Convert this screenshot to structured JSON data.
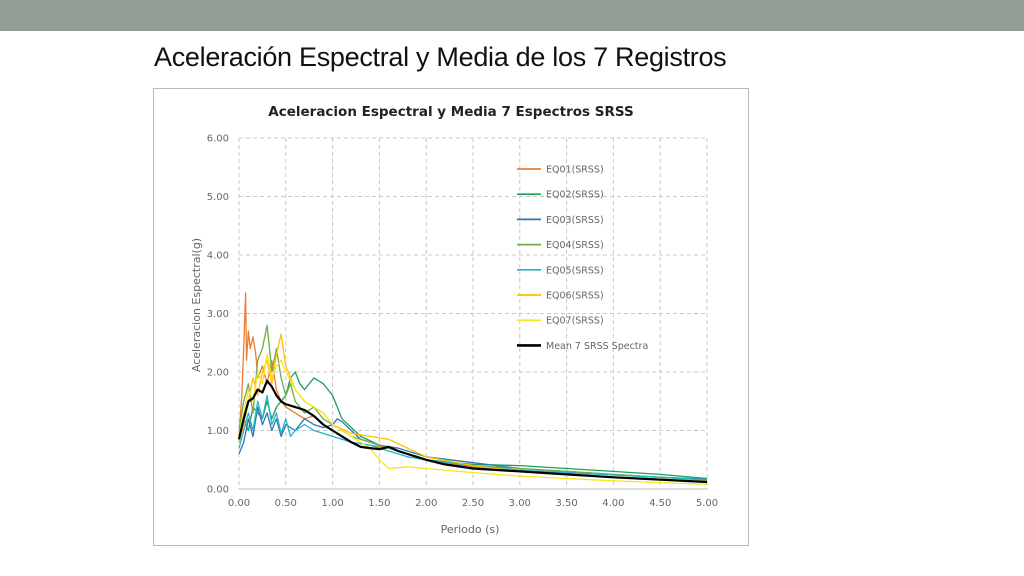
{
  "slide": {
    "title": "Aceleración Espectral y Media de los 7 Registros"
  },
  "colors": {
    "topbar": "#909e95"
  },
  "chart_data": {
    "type": "line",
    "title": "Aceleracion Espectral y Media 7 Espectros SRSS",
    "xlabel": "Periodo (s)",
    "ylabel": "Aceleracion Espectral(g)",
    "xlim": [
      0,
      5
    ],
    "ylim": [
      0,
      6
    ],
    "xticks": [
      "0.00",
      "0.50",
      "1.00",
      "1.50",
      "2.00",
      "2.50",
      "3.00",
      "3.50",
      "4.00",
      "4.50",
      "5.00"
    ],
    "yticks": [
      "0.00",
      "1.00",
      "2.00",
      "3.00",
      "4.00",
      "5.00",
      "6.00"
    ],
    "grid": "dashed",
    "legend_position": "right",
    "series": [
      {
        "name": "EQ01(SRSS)",
        "color": "#ed7d31",
        "width": 1.3,
        "x": [
          0,
          0.03,
          0.05,
          0.07,
          0.08,
          0.1,
          0.12,
          0.15,
          0.18,
          0.2,
          0.25,
          0.3,
          0.35,
          0.4,
          0.45,
          0.5,
          0.6,
          0.7,
          0.8,
          0.9,
          1.0,
          1.2,
          1.4,
          1.6,
          1.8,
          2.0,
          2.5,
          3.0,
          3.5,
          4.0,
          4.5,
          5.0
        ],
        "y": [
          0.9,
          1.6,
          2.4,
          3.35,
          2.2,
          2.7,
          2.4,
          2.6,
          2.3,
          1.9,
          2.1,
          1.8,
          2.2,
          1.7,
          1.5,
          1.4,
          1.3,
          1.2,
          1.25,
          1.1,
          1.0,
          0.8,
          0.75,
          0.7,
          0.6,
          0.5,
          0.38,
          0.32,
          0.28,
          0.24,
          0.2,
          0.16
        ]
      },
      {
        "name": "EQ02(SRSS)",
        "color": "#1e9e5a",
        "width": 1.3,
        "x": [
          0,
          0.05,
          0.1,
          0.15,
          0.2,
          0.25,
          0.3,
          0.35,
          0.4,
          0.5,
          0.55,
          0.6,
          0.65,
          0.7,
          0.8,
          0.9,
          1.0,
          1.1,
          1.3,
          1.5,
          1.7,
          2.0,
          2.5,
          3.0,
          3.5,
          4.0,
          4.5,
          5.0
        ],
        "y": [
          0.8,
          1.2,
          1.0,
          1.4,
          1.3,
          1.2,
          1.5,
          1.2,
          1.4,
          1.6,
          1.9,
          2.0,
          1.8,
          1.7,
          1.9,
          1.8,
          1.6,
          1.2,
          0.9,
          0.75,
          0.65,
          0.5,
          0.42,
          0.4,
          0.35,
          0.3,
          0.25,
          0.18
        ]
      },
      {
        "name": "EQ03(SRSS)",
        "color": "#2e75b6",
        "width": 1.3,
        "x": [
          0,
          0.05,
          0.1,
          0.15,
          0.2,
          0.25,
          0.3,
          0.35,
          0.4,
          0.45,
          0.5,
          0.6,
          0.7,
          0.8,
          0.9,
          1.0,
          1.05,
          1.1,
          1.2,
          1.3,
          1.5,
          1.7,
          2.0,
          2.5,
          3.0,
          3.5,
          4.0,
          4.5,
          5.0
        ],
        "y": [
          0.6,
          0.8,
          1.2,
          0.9,
          1.4,
          1.1,
          1.3,
          1.0,
          1.2,
          0.9,
          1.1,
          1.0,
          1.2,
          1.1,
          1.05,
          1.1,
          1.2,
          1.15,
          1.0,
          0.85,
          0.75,
          0.7,
          0.55,
          0.45,
          0.35,
          0.3,
          0.25,
          0.2,
          0.17
        ]
      },
      {
        "name": "EQ04(SRSS)",
        "color": "#70ad47",
        "width": 1.3,
        "x": [
          0,
          0.05,
          0.1,
          0.15,
          0.2,
          0.25,
          0.3,
          0.35,
          0.4,
          0.45,
          0.5,
          0.55,
          0.6,
          0.7,
          0.8,
          0.9,
          1.0,
          1.2,
          1.4,
          1.6,
          1.8,
          2.0,
          2.5,
          3.0,
          3.5,
          4.0,
          4.5,
          5.0
        ],
        "y": [
          1.0,
          1.5,
          1.8,
          1.3,
          2.2,
          2.4,
          2.8,
          2.0,
          2.4,
          1.9,
          1.6,
          1.8,
          1.5,
          1.3,
          1.4,
          1.2,
          1.1,
          0.9,
          0.8,
          0.7,
          0.6,
          0.5,
          0.4,
          0.35,
          0.3,
          0.25,
          0.2,
          0.15
        ]
      },
      {
        "name": "EQ05(SRSS)",
        "color": "#22b5c8",
        "width": 1.3,
        "x": [
          0,
          0.05,
          0.1,
          0.15,
          0.2,
          0.25,
          0.3,
          0.35,
          0.4,
          0.45,
          0.5,
          0.55,
          0.6,
          0.7,
          0.8,
          0.9,
          1.0,
          1.2,
          1.4,
          1.6,
          1.8,
          2.0,
          2.5,
          3.0,
          3.5,
          4.0,
          4.5,
          5.0
        ],
        "y": [
          0.7,
          1.0,
          1.3,
          1.0,
          1.5,
          1.2,
          1.6,
          1.1,
          1.3,
          0.95,
          1.2,
          0.9,
          1.0,
          1.1,
          1.0,
          0.95,
          0.9,
          0.8,
          0.75,
          0.65,
          0.55,
          0.5,
          0.4,
          0.32,
          0.28,
          0.24,
          0.2,
          0.16
        ]
      },
      {
        "name": "EQ06(SRSS)",
        "color": "#ffc000",
        "width": 1.3,
        "x": [
          0,
          0.05,
          0.1,
          0.15,
          0.2,
          0.25,
          0.3,
          0.35,
          0.4,
          0.45,
          0.5,
          0.55,
          0.6,
          0.7,
          0.8,
          0.9,
          1.0,
          1.2,
          1.4,
          1.6,
          1.8,
          2.0,
          2.5,
          3.0,
          3.5,
          4.0,
          4.5,
          5.0
        ],
        "y": [
          0.8,
          1.1,
          1.5,
          1.9,
          1.6,
          2.0,
          2.2,
          1.8,
          2.3,
          2.65,
          2.1,
          1.9,
          1.7,
          1.5,
          1.4,
          1.3,
          1.1,
          0.95,
          0.9,
          0.85,
          0.7,
          0.55,
          0.4,
          0.3,
          0.25,
          0.2,
          0.16,
          0.12
        ]
      },
      {
        "name": "EQ07(SRSS)",
        "color": "#f5e625",
        "width": 1.3,
        "x": [
          0,
          0.05,
          0.1,
          0.15,
          0.2,
          0.25,
          0.3,
          0.35,
          0.4,
          0.45,
          0.5,
          0.6,
          0.7,
          0.8,
          0.9,
          1.0,
          1.2,
          1.4,
          1.5,
          1.6,
          1.8,
          2.0,
          2.5,
          3.0,
          3.5,
          4.0,
          4.5,
          5.0
        ],
        "y": [
          0.9,
          1.3,
          1.7,
          1.5,
          2.0,
          1.8,
          2.3,
          1.9,
          2.1,
          2.2,
          2.0,
          1.7,
          1.5,
          1.4,
          1.3,
          1.1,
          0.9,
          0.7,
          0.5,
          0.35,
          0.38,
          0.35,
          0.28,
          0.22,
          0.18,
          0.14,
          0.11,
          0.08
        ]
      },
      {
        "name": "Mean 7 SRSS Spectra",
        "color": "#000000",
        "width": 2.2,
        "x": [
          0,
          0.05,
          0.1,
          0.15,
          0.2,
          0.25,
          0.3,
          0.35,
          0.4,
          0.45,
          0.5,
          0.6,
          0.7,
          0.8,
          0.9,
          1.0,
          1.1,
          1.2,
          1.3,
          1.4,
          1.5,
          1.6,
          1.7,
          1.8,
          2.0,
          2.2,
          2.5,
          3.0,
          3.5,
          4.0,
          4.5,
          5.0
        ],
        "y": [
          0.85,
          1.2,
          1.5,
          1.55,
          1.7,
          1.65,
          1.85,
          1.75,
          1.6,
          1.5,
          1.45,
          1.4,
          1.35,
          1.25,
          1.1,
          1.0,
          0.9,
          0.8,
          0.72,
          0.7,
          0.68,
          0.72,
          0.65,
          0.6,
          0.5,
          0.42,
          0.35,
          0.3,
          0.25,
          0.2,
          0.16,
          0.12
        ]
      }
    ]
  }
}
